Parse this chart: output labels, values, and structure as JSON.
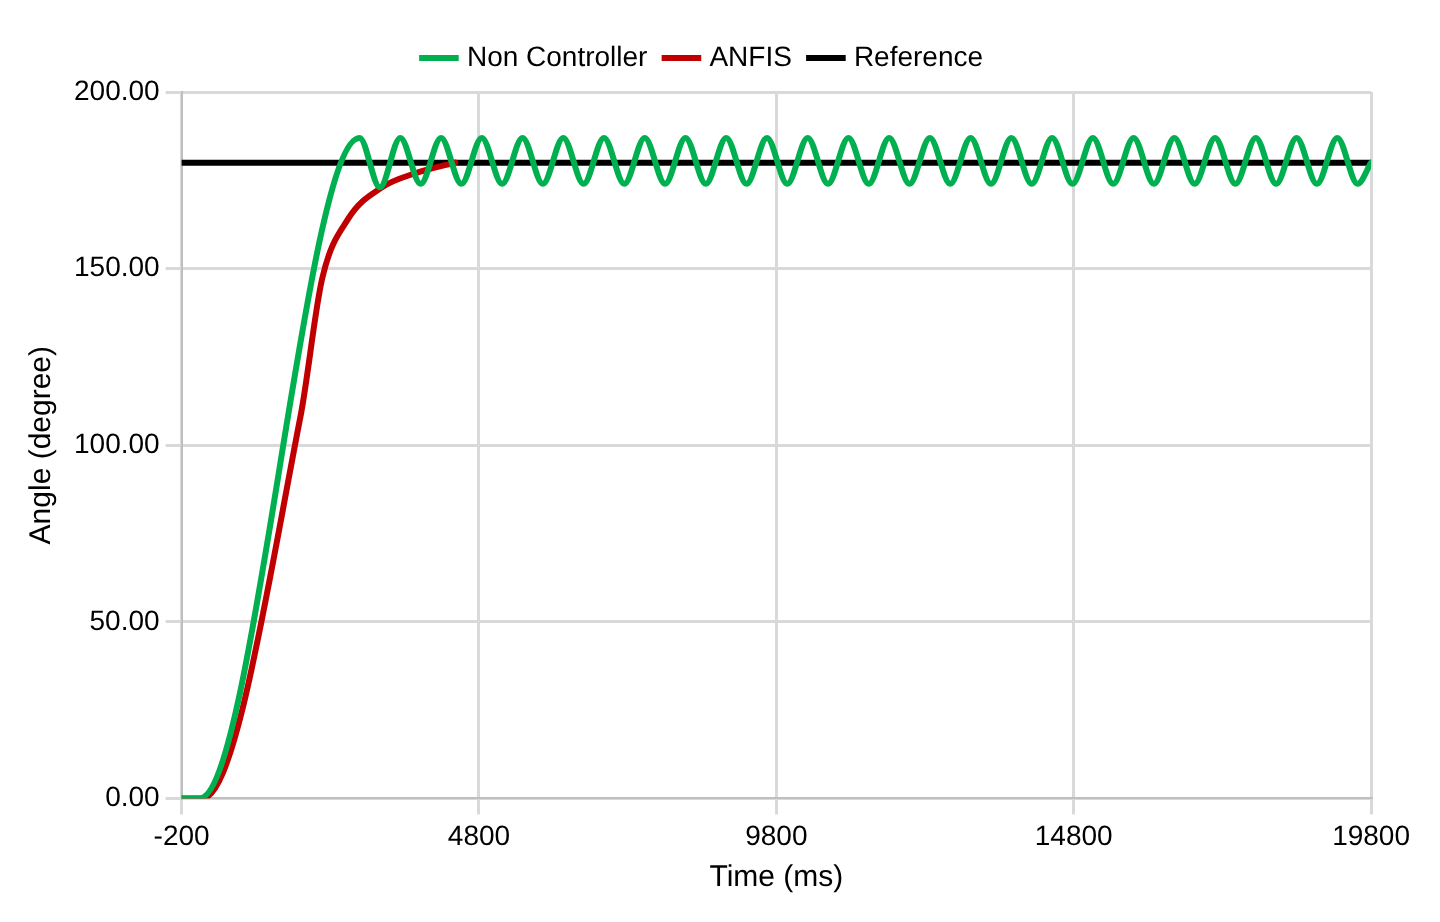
{
  "chart_data": {
    "type": "line",
    "xlabel": "Time (ms)",
    "ylabel": "Angle (degree)",
    "xlim": [
      -200,
      19800
    ],
    "xticks": [
      -200,
      4800,
      9800,
      14800,
      19800
    ],
    "ylim": [
      0,
      200
    ],
    "yticks": [
      {
        "value": 0,
        "label": "0.00"
      },
      {
        "value": 50,
        "label": "50.00"
      },
      {
        "value": 100,
        "label": "100.00"
      },
      {
        "value": 150,
        "label": "150.00"
      },
      {
        "value": 200,
        "label": "200.00"
      }
    ],
    "grid": true,
    "legend": "top",
    "marker": "none",
    "line_style": "solid",
    "series": [
      {
        "name": "Non Controller",
        "color": "#00b050",
        "x": [
          -200,
          100,
          2792,
          3134,
          3477,
          3819,
          4162,
          4504,
          4847,
          5189,
          5532,
          5874,
          6217,
          6559,
          6902,
          7244,
          7587,
          7929,
          8272,
          8614,
          8957,
          9299,
          9642,
          9984,
          10327,
          10669,
          11012,
          11354,
          11697,
          12039,
          12382,
          12724,
          13067,
          13409,
          13752,
          14094,
          14437,
          14779,
          15122,
          15464,
          15807,
          16149,
          16492,
          16834,
          17177,
          17519,
          17862,
          18204,
          18547,
          18889,
          19232,
          19574,
          19800
        ],
        "values": [
          0,
          0,
          187,
          173,
          187,
          174,
          187,
          174,
          187,
          174,
          187,
          174,
          187,
          174,
          187,
          174,
          187,
          174,
          187,
          174,
          187,
          174,
          187,
          174,
          187,
          174,
          187,
          174,
          187,
          174,
          187,
          174,
          187,
          174,
          187,
          174,
          187,
          174,
          187,
          174,
          187,
          174,
          187,
          174,
          187,
          174,
          187,
          174,
          187,
          174,
          187,
          174,
          180
        ]
      },
      {
        "name": "ANFIS",
        "color": "#c00000",
        "x": [
          -200,
          150,
          1797,
          2161,
          2597,
          3170,
          3730,
          4400
        ],
        "values": [
          0,
          0,
          108,
          147,
          164,
          173,
          177,
          180
        ]
      },
      {
        "name": "Reference",
        "color": "#000000",
        "x": [
          -200,
          19800
        ],
        "values": [
          180,
          180
        ]
      }
    ]
  }
}
